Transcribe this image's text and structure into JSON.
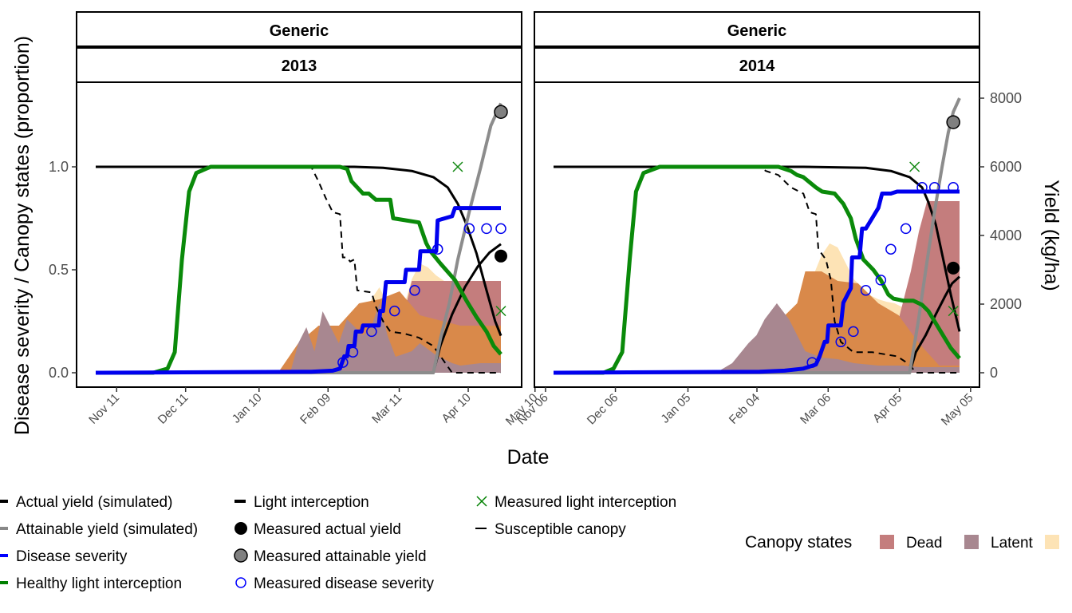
{
  "chart_data": {
    "type": "line",
    "xlabel": "Date",
    "ylabel_left": "Disease severity / Canopy states (proportion)",
    "ylabel_right": "Yield (kg/ha)",
    "ylim_left": [
      0,
      1.32
    ],
    "y_ticks_left": [
      "0.0",
      "0.5",
      "1.0"
    ],
    "ylim_right": [
      0,
      8000
    ],
    "y_ticks_right": [
      "0",
      "2000",
      "4000",
      "6000",
      "8000"
    ],
    "grid": false,
    "panels": [
      {
        "strip_top": "Generic",
        "strip_bottom": "2013",
        "x_ticks": [
          "Nov 11",
          "Dec 11",
          "Jan 10",
          "Feb 09",
          "Mar 11",
          "Apr 10",
          "May 10"
        ],
        "series": {
          "healthy_light_interception": [
            [
              0,
              0
            ],
            [
              40,
              0
            ],
            [
              50,
              0.02
            ],
            [
              55,
              0.1
            ],
            [
              60,
              0.55
            ],
            [
              65,
              0.88
            ],
            [
              70,
              0.97
            ],
            [
              80,
              1.0
            ],
            [
              170,
              1.0
            ],
            [
              175,
              0.99
            ],
            [
              178,
              0.93
            ],
            [
              182,
              0.9
            ],
            [
              186,
              0.87
            ],
            [
              190,
              0.87
            ],
            [
              195,
              0.84
            ],
            [
              205,
              0.84
            ],
            [
              207,
              0.75
            ],
            [
              225,
              0.73
            ],
            [
              230,
              0.63
            ],
            [
              233,
              0.59
            ],
            [
              240,
              0.53
            ],
            [
              250,
              0.45
            ],
            [
              258,
              0.35
            ],
            [
              265,
              0.27
            ],
            [
              272,
              0.2
            ],
            [
              277,
              0.13
            ],
            [
              282,
              0.09
            ]
          ],
          "light_interception": [
            [
              0,
              1.0
            ],
            [
              180,
              1.0
            ],
            [
              200,
              0.995
            ],
            [
              220,
              0.98
            ],
            [
              235,
              0.95
            ],
            [
              245,
              0.9
            ],
            [
              252,
              0.82
            ],
            [
              258,
              0.72
            ],
            [
              265,
              0.58
            ],
            [
              272,
              0.4
            ],
            [
              278,
              0.25
            ],
            [
              282,
              0.18
            ]
          ],
          "susceptible_canopy": [
            [
              0,
              1.0
            ],
            [
              150,
              1.0
            ],
            [
              155,
              0.93
            ],
            [
              160,
              0.85
            ],
            [
              165,
              0.78
            ],
            [
              170,
              0.77
            ],
            [
              172,
              0.56
            ],
            [
              175,
              0.56
            ],
            [
              177,
              0.54
            ],
            [
              180,
              0.55
            ],
            [
              182,
              0.4
            ],
            [
              192,
              0.39
            ],
            [
              195,
              0.32
            ],
            [
              200,
              0.25
            ],
            [
              205,
              0.2
            ],
            [
              215,
              0.19
            ],
            [
              225,
              0.17
            ],
            [
              235,
              0.13
            ],
            [
              243,
              0.05
            ],
            [
              248,
              0
            ],
            [
              282,
              0
            ]
          ],
          "disease_severity": [
            [
              0,
              0
            ],
            [
              150,
              0.005
            ],
            [
              165,
              0.01
            ],
            [
              170,
              0.02
            ],
            [
              173,
              0.08
            ],
            [
              175,
              0.08
            ],
            [
              176,
              0.13
            ],
            [
              180,
              0.13
            ],
            [
              181,
              0.2
            ],
            [
              185,
              0.2
            ],
            [
              186,
              0.23
            ],
            [
              197,
              0.23
            ],
            [
              198,
              0.3
            ],
            [
              200,
              0.3
            ],
            [
              202,
              0.44
            ],
            [
              215,
              0.44
            ],
            [
              216,
              0.5
            ],
            [
              225,
              0.5
            ],
            [
              226,
              0.59
            ],
            [
              237,
              0.59
            ],
            [
              238,
              0.74
            ],
            [
              248,
              0.76
            ],
            [
              250,
              0.8
            ],
            [
              282,
              0.8
            ]
          ],
          "attainable_yield": [
            [
              0,
              0
            ],
            [
              235,
              0
            ],
            [
              240,
              1000
            ],
            [
              246,
              2000
            ],
            [
              252,
              3300
            ],
            [
              260,
              4700
            ],
            [
              268,
              6000
            ],
            [
              275,
              7200
            ],
            [
              282,
              7850
            ]
          ],
          "actual_yield": [
            [
              0,
              0
            ],
            [
              235,
              0
            ],
            [
              240,
              800
            ],
            [
              248,
              1700
            ],
            [
              257,
              2500
            ],
            [
              266,
              3100
            ],
            [
              274,
              3500
            ],
            [
              282,
              3750
            ]
          ],
          "measured_disease_severity": [
            [
              172,
              0.05
            ],
            [
              179,
              0.1
            ],
            [
              192,
              0.2
            ],
            [
              208,
              0.3
            ],
            [
              222,
              0.4
            ],
            [
              238,
              0.6
            ],
            [
              260,
              0.7
            ],
            [
              272,
              0.7
            ],
            [
              282,
              0.7
            ]
          ],
          "measured_light_interception": [
            [
              252,
              1.0
            ],
            [
              282,
              0.3
            ]
          ],
          "measured_actual_yield": [
            [
              282,
              3400
            ]
          ],
          "measured_attainable_yield": [
            [
              282,
              7600
            ]
          ]
        }
      },
      {
        "strip_top": "Generic",
        "strip_bottom": "2014",
        "x_ticks": [
          "Nov 06",
          "Dec 06",
          "Jan 05",
          "Feb 04",
          "Mar 06",
          "Apr 05",
          "May 05"
        ],
        "series": {
          "healthy_light_interception": [
            [
              0,
              0
            ],
            [
              40,
              0
            ],
            [
              48,
              0.02
            ],
            [
              55,
              0.1
            ],
            [
              61,
              0.55
            ],
            [
              66,
              0.88
            ],
            [
              72,
              0.97
            ],
            [
              85,
              1.0
            ],
            [
              180,
              1.0
            ],
            [
              185,
              0.99
            ],
            [
              190,
              0.98
            ],
            [
              195,
              0.96
            ],
            [
              200,
              0.95
            ],
            [
              210,
              0.9
            ],
            [
              215,
              0.88
            ],
            [
              225,
              0.87
            ],
            [
              232,
              0.82
            ],
            [
              238,
              0.75
            ],
            [
              242,
              0.65
            ],
            [
              248,
              0.55
            ],
            [
              256,
              0.5
            ],
            [
              262,
              0.45
            ],
            [
              268,
              0.38
            ],
            [
              272,
              0.36
            ],
            [
              280,
              0.35
            ],
            [
              288,
              0.35
            ],
            [
              295,
              0.33
            ],
            [
              300,
              0.3
            ],
            [
              305,
              0.25
            ],
            [
              310,
              0.2
            ],
            [
              318,
              0.12
            ],
            [
              325,
              0.07
            ]
          ],
          "light_interception": [
            [
              0,
              1.0
            ],
            [
              200,
              1.0
            ],
            [
              250,
              0.995
            ],
            [
              270,
              0.98
            ],
            [
              285,
              0.95
            ],
            [
              295,
              0.9
            ],
            [
              300,
              0.83
            ],
            [
              306,
              0.72
            ],
            [
              312,
              0.55
            ],
            [
              318,
              0.38
            ],
            [
              325,
              0.2
            ]
          ],
          "susceptible_canopy": [
            [
              0,
              1.0
            ],
            [
              165,
              1.0
            ],
            [
              170,
              0.98
            ],
            [
              180,
              0.96
            ],
            [
              185,
              0.93
            ],
            [
              190,
              0.9
            ],
            [
              200,
              0.87
            ],
            [
              205,
              0.78
            ],
            [
              210,
              0.77
            ],
            [
              212,
              0.6
            ],
            [
              218,
              0.55
            ],
            [
              222,
              0.45
            ],
            [
              225,
              0.25
            ],
            [
              230,
              0.15
            ],
            [
              240,
              0.1
            ],
            [
              255,
              0.1
            ],
            [
              265,
              0.09
            ],
            [
              275,
              0.08
            ],
            [
              280,
              0.06
            ],
            [
              285,
              0.04
            ],
            [
              290,
              0
            ],
            [
              325,
              0
            ]
          ],
          "disease_severity": [
            [
              0,
              0
            ],
            [
              165,
              0.005
            ],
            [
              185,
              0.01
            ],
            [
              200,
              0.02
            ],
            [
              210,
              0.04
            ],
            [
              213,
              0.08
            ],
            [
              217,
              0.15
            ],
            [
              219,
              0.15
            ],
            [
              220,
              0.23
            ],
            [
              230,
              0.23
            ],
            [
              232,
              0.34
            ],
            [
              238,
              0.41
            ],
            [
              239,
              0.56
            ],
            [
              245,
              0.56
            ],
            [
              247,
              0.7
            ],
            [
              250,
              0.7
            ],
            [
              255,
              0.75
            ],
            [
              260,
              0.8
            ],
            [
              263,
              0.87
            ],
            [
              270,
              0.87
            ],
            [
              275,
              0.88
            ],
            [
              325,
              0.88
            ]
          ],
          "attainable_yield": [
            [
              0,
              0
            ],
            [
              285,
              0
            ],
            [
              292,
              1500
            ],
            [
              298,
              3000
            ],
            [
              305,
              4700
            ],
            [
              311,
              6000
            ],
            [
              316,
              7000
            ],
            [
              320,
              7600
            ],
            [
              325,
              8000
            ]
          ],
          "actual_yield": [
            [
              0,
              0
            ],
            [
              285,
              0
            ],
            [
              290,
              600
            ],
            [
              298,
              1100
            ],
            [
              306,
              1700
            ],
            [
              313,
              2200
            ],
            [
              319,
              2600
            ],
            [
              325,
              2800
            ]
          ],
          "measured_disease_severity": [
            [
              207,
              0.05
            ],
            [
              230,
              0.15
            ],
            [
              240,
              0.2
            ],
            [
              250,
              0.4
            ],
            [
              262,
              0.45
            ],
            [
              270,
              0.6
            ],
            [
              282,
              0.7
            ],
            [
              295,
              0.9
            ],
            [
              305,
              0.9
            ],
            [
              320,
              0.9
            ]
          ],
          "measured_light_interception": [
            [
              289,
              1.0
            ],
            [
              320,
              0.3
            ]
          ],
          "measured_actual_yield": [
            [
              320,
              3050
            ]
          ],
          "measured_attainable_yield": [
            [
              320,
              7300
            ]
          ]
        }
      }
    ],
    "legend": {
      "entries": [
        {
          "label": "Actual yield (simulated)",
          "color": "#000000",
          "style": "line"
        },
        {
          "label": "Attainable yield (simulated)",
          "color": "#888888",
          "style": "line"
        },
        {
          "label": "Disease severity",
          "color": "#0000ff",
          "style": "line"
        },
        {
          "label": "Healthy light interception",
          "color": "#008000",
          "style": "line"
        },
        {
          "label": "Light interception",
          "color": "#000000",
          "style": "line"
        },
        {
          "label": "Measured actual yield",
          "color": "#000000",
          "style": "filled-circle"
        },
        {
          "label": "Measured attainable yield",
          "color": "#808080",
          "style": "grey-circle"
        },
        {
          "label": "Measured disease severity",
          "color": "#0000ff",
          "style": "open-circle"
        },
        {
          "label": "Measured light interception",
          "color": "#008000",
          "style": "cross"
        },
        {
          "label": "Susceptible canopy",
          "color": "#000000",
          "style": "dashed"
        }
      ],
      "canopy_title": "Canopy states",
      "canopy_states": [
        {
          "label": "Dead",
          "color": "#c47d7d"
        },
        {
          "label": "Latent",
          "color": "#a88790"
        },
        {
          "label": "",
          "color": "#fde3b5"
        }
      ]
    },
    "colors": {
      "healthy": "#0a8a0a",
      "disease": "#0000ee",
      "attainable": "#8c8c8c",
      "measured_light": "#118811",
      "infectious": "#d9894a"
    }
  }
}
